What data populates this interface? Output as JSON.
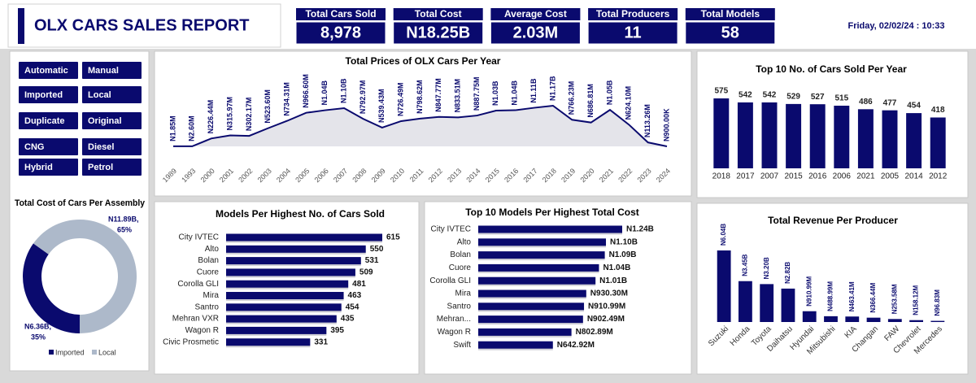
{
  "header": {
    "title": "OLX CARS SALES REPORT",
    "date": "Friday, 02/02/24 : 10:33"
  },
  "kpis": [
    {
      "label": "Total Cars Sold",
      "value": "8,978"
    },
    {
      "label": "Total Cost",
      "value": "N18.25B"
    },
    {
      "label": "Average Cost",
      "value": "2.03M"
    },
    {
      "label": "Total Producers",
      "value": 11
    },
    {
      "label": "Total Models",
      "value": 58
    }
  ],
  "slicers": [
    "Automatic",
    "Manual",
    "Imported",
    "Local",
    "Duplicate",
    "Original",
    "CNG",
    "Diesel",
    "Hybrid",
    "Petrol"
  ],
  "chart_data": [
    {
      "type": "line",
      "title": "Total Prices of  OLX Cars Per Year",
      "color": "#0a0a6e",
      "area_color": "#e4e4ea",
      "categories": [
        "1989",
        "1993",
        "2000",
        "2001",
        "2002",
        "2003",
        "2004",
        "2005",
        "2006",
        "2007",
        "2008",
        "2009",
        "2010",
        "2011",
        "2012",
        "2013",
        "2014",
        "2015",
        "2016",
        "2017",
        "2018",
        "2019",
        "2020",
        "2021",
        "2022",
        "2023",
        "2024"
      ],
      "values": [
        1850000,
        2600000,
        226440000,
        315970000,
        302170000,
        523600000,
        734310000,
        966600000,
        1040000000,
        1100000000,
        792970000,
        539430000,
        726490000,
        798620000,
        847770000,
        833510000,
        887750000,
        1030000000,
        1040000000,
        1110000000,
        1170000000,
        766230000,
        686810000,
        1050000000,
        624100000,
        113260000,
        900000
      ],
      "value_labels": [
        "N1.85M",
        "N2.60M",
        "N226.44M",
        "N315.97M",
        "N302.17M",
        "N523.60M",
        "N734.31M",
        "N966.60M",
        "N1.04B",
        "N1.10B",
        "N792.97M",
        "N539.43M",
        "N726.49M",
        "N798.62M",
        "N847.77M",
        "N833.51M",
        "N887.75M",
        "N1.03B",
        "N1.04B",
        "N1.11B",
        "N1.17B",
        "N766.23M",
        "N686.81M",
        "N1.05B",
        "N624.10M",
        "N113.26M",
        "N900.00K"
      ]
    },
    {
      "type": "bar",
      "title": "Top 10 No. of Cars Sold Per Year",
      "color": "#0a0a6e",
      "categories": [
        "2018",
        "2017",
        "2007",
        "2015",
        "2016",
        "2006",
        "2021",
        "2005",
        "2014",
        "2012"
      ],
      "values": [
        575,
        542,
        542,
        529,
        527,
        515,
        486,
        477,
        454,
        418
      ]
    },
    {
      "type": "pie",
      "donut": true,
      "title": "Total Cost of Cars Per Assembly",
      "legend": "bottom",
      "categories": [
        "Imported",
        "Local"
      ],
      "colors": [
        "#0a0a6e",
        "#adb9ca"
      ],
      "values": [
        6360000000,
        11890000000
      ],
      "value_labels": [
        "N6.36B,",
        "N11.89B,"
      ],
      "percent_labels": [
        "35%",
        "65%"
      ]
    },
    {
      "type": "bar",
      "horizontal": true,
      "title": "Models Per Highest No. of Cars Sold",
      "color": "#0a0a6e",
      "categories": [
        "City IVTEC",
        "Alto",
        "Bolan",
        "Cuore",
        "Corolla GLI",
        "Mira",
        "Santro",
        "Mehran VXR",
        "Wagon R",
        "Civic Prosmetic"
      ],
      "values": [
        615,
        550,
        531,
        509,
        481,
        463,
        454,
        435,
        395,
        331
      ]
    },
    {
      "type": "bar",
      "horizontal": true,
      "title": "Top 10 Models Per Highest Total Cost",
      "color": "#0a0a6e",
      "categories": [
        "City IVTEC",
        "Alto",
        "Bolan",
        "Cuore",
        "Corolla GLI",
        "Mira",
        "Santro",
        "Mehran...",
        "Wagon R",
        "Swift"
      ],
      "values": [
        1240000000,
        1100000000,
        1090000000,
        1040000000,
        1010000000,
        930300000,
        910990000,
        902490000,
        802890000,
        642920000
      ],
      "value_labels": [
        "N1.24B",
        "N1.10B",
        "N1.09B",
        "N1.04B",
        "N1.01B",
        "N930.30M",
        "N910.99M",
        "N902.49M",
        "N802.89M",
        "N642.92M"
      ]
    },
    {
      "type": "bar",
      "title": "Total Revenue Per Producer",
      "color": "#0a0a6e",
      "categories": [
        "Suzuki",
        "Honda",
        "Toyota",
        "Daihatsu",
        "Hyundai",
        "Mitsubishi",
        "KIA",
        "Changan",
        "FAW",
        "Chevrolet",
        "Mercedes"
      ],
      "values": [
        6040000000,
        3450000000,
        3200000000,
        2820000000,
        910990000,
        488990000,
        463410000,
        366440000,
        253580000,
        158120000,
        96830000
      ],
      "value_labels": [
        "N6.04B",
        "N3.45B",
        "N3.20B",
        "N2.82B",
        "N910.99M",
        "N488.99M",
        "N463.41M",
        "N366.44M",
        "N253.58M",
        "N158.12M",
        "N96.83M"
      ]
    }
  ]
}
